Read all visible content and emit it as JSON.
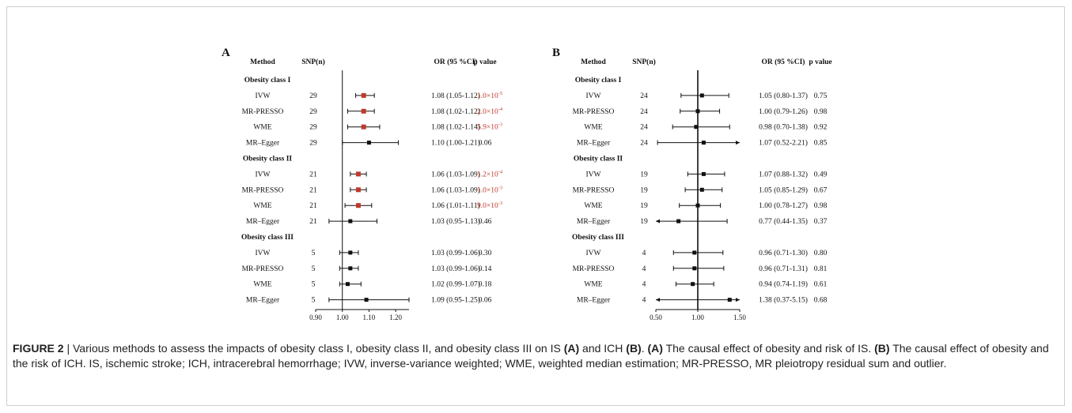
{
  "colors": {
    "significant": "#c0392b",
    "point": "#111111",
    "line": "#111111"
  },
  "panels": [
    {
      "id": "A",
      "label": "A",
      "headers": {
        "method": "Method",
        "snp": "SNP(n)",
        "or": "OR (95 %CI)",
        "p": "p value"
      },
      "axis": {
        "min": 0.9,
        "max": 1.25,
        "ticks": [
          "0.90",
          "1.00",
          "1.10",
          "1.20"
        ],
        "tick_values": [
          0.9,
          1.0,
          1.1,
          1.2
        ],
        "ref": 1.0
      },
      "rows": [
        {
          "group": "Obesity class I"
        },
        {
          "method": "IVW",
          "snp": "29",
          "or": 1.08,
          "lo": 1.05,
          "hi": 1.12,
          "or_text": "1.08 (1.05-1.12)",
          "p_base": "1.0×10",
          "p_exp": "-5",
          "sig": true
        },
        {
          "method": "MR-PRESSO",
          "snp": "29",
          "or": 1.08,
          "lo": 1.02,
          "hi": 1.12,
          "or_text": "1.08 (1.02-1.12)",
          "p_base": "2.0×10",
          "p_exp": "-4",
          "sig": true
        },
        {
          "method": "WME",
          "snp": "29",
          "or": 1.08,
          "lo": 1.02,
          "hi": 1.14,
          "or_text": "1.08 (1.02-1.14)",
          "p_base": "5.9×10",
          "p_exp": "-3",
          "sig": true
        },
        {
          "method": "MR–Egger",
          "snp": "29",
          "or": 1.1,
          "lo": 1.0,
          "hi": 1.21,
          "or_text": "1.10 (1.00-1.21)",
          "p_base": "0.06",
          "p_exp": "",
          "sig": false
        },
        {
          "group": "Obesity class II"
        },
        {
          "method": "IVW",
          "snp": "21",
          "or": 1.06,
          "lo": 1.03,
          "hi": 1.09,
          "or_text": "1.06 (1.03-1.09)",
          "p_base": "1.2×10",
          "p_exp": "-4",
          "sig": true
        },
        {
          "method": "MR-PRESSO",
          "snp": "21",
          "or": 1.06,
          "lo": 1.03,
          "hi": 1.09,
          "or_text": "1.06 (1.03-1.09)",
          "p_base": "1.0×10",
          "p_exp": "-3",
          "sig": true
        },
        {
          "method": "WME",
          "snp": "21",
          "or": 1.06,
          "lo": 1.01,
          "hi": 1.11,
          "or_text": "1.06 (1.01-1.11)",
          "p_base": "9.0×10",
          "p_exp": "-3",
          "sig": true
        },
        {
          "method": "MR–Egger",
          "snp": "21",
          "or": 1.03,
          "lo": 0.95,
          "hi": 1.13,
          "or_text": "1.03 (0.95-1.13)",
          "p_base": "0.46",
          "p_exp": "",
          "sig": false
        },
        {
          "group": "Obesity class III"
        },
        {
          "method": "IVW",
          "snp": "5",
          "or": 1.03,
          "lo": 0.99,
          "hi": 1.06,
          "or_text": "1.03 (0.99-1.06)",
          "p_base": "0.30",
          "p_exp": "",
          "sig": false
        },
        {
          "method": "MR-PRESSO",
          "snp": "5",
          "or": 1.03,
          "lo": 0.99,
          "hi": 1.06,
          "or_text": "1.03 (0.99-1.06)",
          "p_base": "0.14",
          "p_exp": "",
          "sig": false
        },
        {
          "method": "WME",
          "snp": "5",
          "or": 1.02,
          "lo": 0.99,
          "hi": 1.07,
          "or_text": "1.02 (0.99-1.07)",
          "p_base": "0.18",
          "p_exp": "",
          "sig": false
        },
        {
          "method": "MR–Egger",
          "snp": "5",
          "or": 1.09,
          "lo": 0.95,
          "hi": 1.25,
          "or_text": "1.09 (0.95-1.25)",
          "p_base": "0.06",
          "p_exp": "",
          "sig": false
        }
      ]
    },
    {
      "id": "B",
      "label": "B",
      "headers": {
        "method": "Method",
        "snp": "SNP(n)",
        "or": "OR (95 %CI)",
        "p": "p value"
      },
      "axis": {
        "min": 0.5,
        "max": 1.5,
        "ticks": [
          "0.50",
          "1.00",
          "1.50"
        ],
        "tick_values": [
          0.5,
          1.0,
          1.5
        ],
        "ref": 1.0
      },
      "rows": [
        {
          "group": "Obesity class I"
        },
        {
          "method": "IVW",
          "snp": "24",
          "or": 1.05,
          "lo": 0.8,
          "hi": 1.37,
          "or_text": "1.05 (0.80-1.37)",
          "p_base": "0.75",
          "p_exp": "",
          "sig": false
        },
        {
          "method": "MR-PRESSO",
          "snp": "24",
          "or": 1.0,
          "lo": 0.79,
          "hi": 1.26,
          "or_text": "1.00 (0.79-1.26)",
          "p_base": "0.98",
          "p_exp": "",
          "sig": false
        },
        {
          "method": "WME",
          "snp": "24",
          "or": 0.98,
          "lo": 0.7,
          "hi": 1.38,
          "or_text": "0.98 (0.70-1.38)",
          "p_base": "0.92",
          "p_exp": "",
          "sig": false
        },
        {
          "method": "MR–Egger",
          "snp": "24",
          "or": 1.07,
          "lo": 0.52,
          "hi": 2.21,
          "or_text": "1.07 (0.52-2.21)",
          "p_base": "0.85",
          "p_exp": "",
          "sig": false
        },
        {
          "group": "Obesity class II"
        },
        {
          "method": "IVW",
          "snp": "19",
          "or": 1.07,
          "lo": 0.88,
          "hi": 1.32,
          "or_text": "1.07 (0.88-1.32)",
          "p_base": "0.49",
          "p_exp": "",
          "sig": false
        },
        {
          "method": "MR-PRESSO",
          "snp": "19",
          "or": 1.05,
          "lo": 0.85,
          "hi": 1.29,
          "or_text": "1.05 (0.85-1.29)",
          "p_base": "0.67",
          "p_exp": "",
          "sig": false
        },
        {
          "method": "WME",
          "snp": "19",
          "or": 1.0,
          "lo": 0.78,
          "hi": 1.27,
          "or_text": "1.00 (0.78-1.27)",
          "p_base": "0.98",
          "p_exp": "",
          "sig": false
        },
        {
          "method": "MR–Egger",
          "snp": "19",
          "or": 0.77,
          "lo": 0.44,
          "hi": 1.35,
          "or_text": "0.77 (0.44-1.35)",
          "p_base": "0.37",
          "p_exp": "",
          "sig": false
        },
        {
          "group": "Obesity class III"
        },
        {
          "method": "IVW",
          "snp": "4",
          "or": 0.96,
          "lo": 0.71,
          "hi": 1.3,
          "or_text": "0.96 (0.71-1.30)",
          "p_base": "0.80",
          "p_exp": "",
          "sig": false
        },
        {
          "method": "MR-PRESSO",
          "snp": "4",
          "or": 0.96,
          "lo": 0.71,
          "hi": 1.31,
          "or_text": "0.96 (0.71-1.31)",
          "p_base": "0.81",
          "p_exp": "",
          "sig": false
        },
        {
          "method": "WME",
          "snp": "4",
          "or": 0.94,
          "lo": 0.74,
          "hi": 1.19,
          "or_text": "0.94 (0.74-1.19)",
          "p_base": "0.61",
          "p_exp": "",
          "sig": false
        },
        {
          "method": "MR–Egger",
          "snp": "4",
          "or": 1.38,
          "lo": 0.37,
          "hi": 5.15,
          "or_text": "1.38 (0.37-5.15)",
          "p_base": "0.68",
          "p_exp": "",
          "sig": false
        }
      ]
    }
  ],
  "caption": {
    "figure_label": "FIGURE 2",
    "sep": " | ",
    "text1": "Various methods to assess the impacts of obesity class I, obesity class II, and obesity class III on IS ",
    "bA1": "(A)",
    "text2": " and ICH ",
    "bB1": "(B)",
    "text3": ". ",
    "bA2": "(A)",
    "text4": " The causal effect of obesity and risk of IS. ",
    "bB2": "(B)",
    "text5": " The causal effect of obesity and the risk of ICH. IS, ischemic stroke; ICH, intracerebral hemorrhage; IVW, inverse-variance weighted; WME, weighted median estimation; MR-PRESSO, MR pleiotropy residual sum and outlier."
  },
  "chart_data": [
    {
      "type": "forest",
      "title": "A",
      "xlabel": "",
      "xlim": [
        0.9,
        1.25
      ],
      "reference_line": 1.0,
      "series": [
        {
          "name": "Obesity class I",
          "methods": [
            "IVW",
            "MR-PRESSO",
            "WME",
            "MR–Egger"
          ],
          "snp": [
            29,
            29,
            29,
            29
          ],
          "or": [
            1.08,
            1.08,
            1.08,
            1.1
          ],
          "ci_low": [
            1.05,
            1.02,
            1.02,
            1.0
          ],
          "ci_high": [
            1.12,
            1.12,
            1.14,
            1.21
          ],
          "p": [
            "1.0×10-5",
            "2.0×10-4",
            "5.9×10-3",
            "0.06"
          ]
        },
        {
          "name": "Obesity class II",
          "methods": [
            "IVW",
            "MR-PRESSO",
            "WME",
            "MR–Egger"
          ],
          "snp": [
            21,
            21,
            21,
            21
          ],
          "or": [
            1.06,
            1.06,
            1.06,
            1.03
          ],
          "ci_low": [
            1.03,
            1.03,
            1.01,
            0.95
          ],
          "ci_high": [
            1.09,
            1.09,
            1.11,
            1.13
          ],
          "p": [
            "1.2×10-4",
            "1.0×10-3",
            "9.0×10-3",
            "0.46"
          ]
        },
        {
          "name": "Obesity class III",
          "methods": [
            "IVW",
            "MR-PRESSO",
            "WME",
            "MR–Egger"
          ],
          "snp": [
            5,
            5,
            5,
            5
          ],
          "or": [
            1.03,
            1.03,
            1.02,
            1.09
          ],
          "ci_low": [
            0.99,
            0.99,
            0.99,
            0.95
          ],
          "ci_high": [
            1.06,
            1.06,
            1.07,
            1.25
          ],
          "p": [
            "0.30",
            "0.14",
            "0.18",
            "0.06"
          ]
        }
      ]
    },
    {
      "type": "forest",
      "title": "B",
      "xlabel": "",
      "xlim": [
        0.5,
        1.5
      ],
      "reference_line": 1.0,
      "series": [
        {
          "name": "Obesity class I",
          "methods": [
            "IVW",
            "MR-PRESSO",
            "WME",
            "MR–Egger"
          ],
          "snp": [
            24,
            24,
            24,
            24
          ],
          "or": [
            1.05,
            1.0,
            0.98,
            1.07
          ],
          "ci_low": [
            0.8,
            0.79,
            0.7,
            0.52
          ],
          "ci_high": [
            1.37,
            1.26,
            1.38,
            2.21
          ],
          "p": [
            "0.75",
            "0.98",
            "0.92",
            "0.85"
          ]
        },
        {
          "name": "Obesity class II",
          "methods": [
            "IVW",
            "MR-PRESSO",
            "WME",
            "MR–Egger"
          ],
          "snp": [
            19,
            19,
            19,
            19
          ],
          "or": [
            1.07,
            1.05,
            1.0,
            0.77
          ],
          "ci_low": [
            0.88,
            0.85,
            0.78,
            0.44
          ],
          "ci_high": [
            1.32,
            1.29,
            1.27,
            1.35
          ],
          "p": [
            "0.49",
            "0.67",
            "0.98",
            "0.37"
          ]
        },
        {
          "name": "Obesity class III",
          "methods": [
            "IVW",
            "MR-PRESSO",
            "WME",
            "MR–Egger"
          ],
          "snp": [
            4,
            4,
            4,
            4
          ],
          "or": [
            0.96,
            0.96,
            0.94,
            1.38
          ],
          "ci_low": [
            0.71,
            0.71,
            0.74,
            0.37
          ],
          "ci_high": [
            1.3,
            1.31,
            1.19,
            5.15
          ],
          "p": [
            "0.80",
            "0.81",
            "0.61",
            "0.68"
          ]
        }
      ]
    }
  ]
}
